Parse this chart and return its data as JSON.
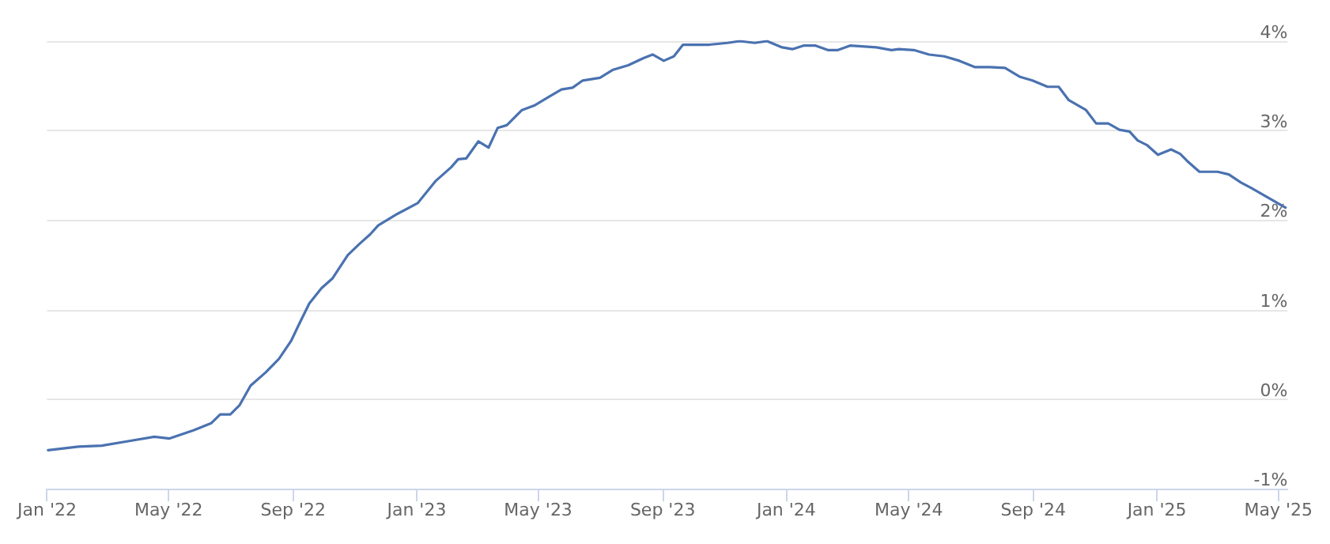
{
  "chart_data": {
    "type": "line",
    "x": [
      "2022-01-02",
      "2022-02-01",
      "2022-02-24",
      "2022-03-22",
      "2022-04-17",
      "2022-05-02",
      "2022-05-25",
      "2022-06-12",
      "2022-06-21",
      "2022-07-01",
      "2022-07-10",
      "2022-07-21",
      "2022-08-05",
      "2022-08-18",
      "2022-08-30",
      "2022-09-07",
      "2022-09-17",
      "2022-09-29",
      "2022-10-10",
      "2022-10-25",
      "2022-11-06",
      "2022-11-16",
      "2022-11-24",
      "2022-12-13",
      "2023-01-02",
      "2023-01-20",
      "2023-02-04",
      "2023-02-11",
      "2023-02-19",
      "2023-03-03",
      "2023-03-13",
      "2023-03-22",
      "2023-03-31",
      "2023-04-15",
      "2023-04-27",
      "2023-05-12",
      "2023-05-24",
      "2023-06-04",
      "2023-06-14",
      "2023-07-01",
      "2023-07-14",
      "2023-07-29",
      "2023-08-13",
      "2023-08-22",
      "2023-09-02",
      "2023-09-12",
      "2023-09-21",
      "2023-10-05",
      "2023-10-17",
      "2023-11-04",
      "2023-11-16",
      "2023-12-01",
      "2023-12-13",
      "2023-12-28",
      "2024-01-07",
      "2024-01-18",
      "2024-01-30",
      "2024-02-11",
      "2024-02-21",
      "2024-03-04",
      "2024-03-30",
      "2024-04-14",
      "2024-04-21",
      "2024-05-06",
      "2024-05-21",
      "2024-06-05",
      "2024-06-20",
      "2024-07-05",
      "2024-07-20",
      "2024-08-04",
      "2024-08-19",
      "2024-08-31",
      "2024-09-15",
      "2024-09-26",
      "2024-10-06",
      "2024-10-23",
      "2024-11-02",
      "2024-11-14",
      "2024-11-25",
      "2024-12-05",
      "2024-12-13",
      "2024-12-22",
      "2025-01-02",
      "2025-01-15",
      "2025-01-24",
      "2025-01-31",
      "2025-02-12",
      "2025-03-02",
      "2025-03-13",
      "2025-03-25",
      "2025-04-04",
      "2025-05-08"
    ],
    "series": [
      {
        "color": "#4a72b0",
        "values": [
          -0.57,
          -0.53,
          -0.52,
          -0.47,
          -0.42,
          -0.44,
          -0.35,
          -0.27,
          -0.17,
          -0.17,
          -0.07,
          0.15,
          0.3,
          0.45,
          0.65,
          0.84,
          1.07,
          1.24,
          1.35,
          1.61,
          1.74,
          1.84,
          1.94,
          2.07,
          2.19,
          2.44,
          2.59,
          2.68,
          2.69,
          2.88,
          2.81,
          3.03,
          3.06,
          3.23,
          3.28,
          3.38,
          3.46,
          3.48,
          3.56,
          3.59,
          3.68,
          3.73,
          3.81,
          3.85,
          3.78,
          3.83,
          3.96,
          3.96,
          3.96,
          3.98,
          4.0,
          3.98,
          4.0,
          3.93,
          3.91,
          3.95,
          3.95,
          3.9,
          3.9,
          3.95,
          3.93,
          3.9,
          3.91,
          3.9,
          3.85,
          3.83,
          3.78,
          3.71,
          3.71,
          3.7,
          3.6,
          3.56,
          3.49,
          3.49,
          3.34,
          3.23,
          3.08,
          3.08,
          3.01,
          2.99,
          2.89,
          2.84,
          2.73,
          2.79,
          2.74,
          2.66,
          2.54,
          2.54,
          2.51,
          2.42,
          2.36,
          2.14
        ]
      }
    ],
    "xlim": [
      "2022-01-01",
      "2025-05-10"
    ],
    "xticks": [
      {
        "value": "2022-01-01",
        "label": "Jan '22"
      },
      {
        "value": "2022-05-01",
        "label": "May '22"
      },
      {
        "value": "2022-09-01",
        "label": "Sep '22"
      },
      {
        "value": "2023-01-01",
        "label": "Jan '23"
      },
      {
        "value": "2023-05-01",
        "label": "May '23"
      },
      {
        "value": "2023-09-01",
        "label": "Sep '23"
      },
      {
        "value": "2024-01-01",
        "label": "Jan '24"
      },
      {
        "value": "2024-05-01",
        "label": "May '24"
      },
      {
        "value": "2024-09-01",
        "label": "Sep '24"
      },
      {
        "value": "2025-01-01",
        "label": "Jan '25"
      },
      {
        "value": "2025-05-01",
        "label": "May '25"
      }
    ],
    "ylim": [
      -1,
      4
    ],
    "yticks": [
      {
        "value": -1,
        "label": "-1%"
      },
      {
        "value": 0,
        "label": "0%"
      },
      {
        "value": 1,
        "label": "1%"
      },
      {
        "value": 2,
        "label": "2%"
      },
      {
        "value": 3,
        "label": "3%"
      },
      {
        "value": 4,
        "label": "4%"
      }
    ],
    "grid": "y",
    "marker": "none",
    "line_style": "solid"
  }
}
